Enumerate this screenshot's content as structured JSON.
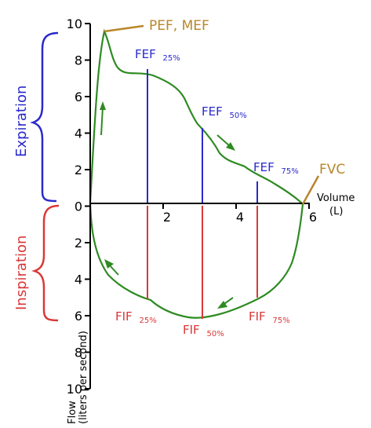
{
  "colors": {
    "curve": "#2e8b22",
    "expiration": "#2a2acb",
    "inspiration": "#d93838",
    "peak": "#b8862a",
    "axis": "#000000"
  },
  "axes": {
    "y_ticks": [
      "10",
      "8",
      "6",
      "4",
      "2",
      "0",
      "2",
      "4",
      "6",
      "8",
      "10"
    ],
    "x_ticks": [
      "2",
      "4",
      "6"
    ],
    "x_label_line1": "Volume",
    "x_label_line2": "(L)",
    "y_label_line1": "Flow",
    "y_label_line2": "(liters per second)"
  },
  "brackets": {
    "expiration": "Expiration",
    "inspiration": "Inspiration"
  },
  "labels": {
    "pef_mef": "PEF, MEF",
    "fvc": "FVC",
    "fef25_main": "FEF",
    "fef25_sub": "25%",
    "fef50_main": "FEF",
    "fef50_sub": "50%",
    "fef75_main": "FEF",
    "fef75_sub": "75%",
    "fif25_main": "FIF",
    "fif25_sub": "25%",
    "fif50_main": "FIF",
    "fif50_sub": "50%",
    "fif75_main": "FIF",
    "fif75_sub": "75%"
  }
}
